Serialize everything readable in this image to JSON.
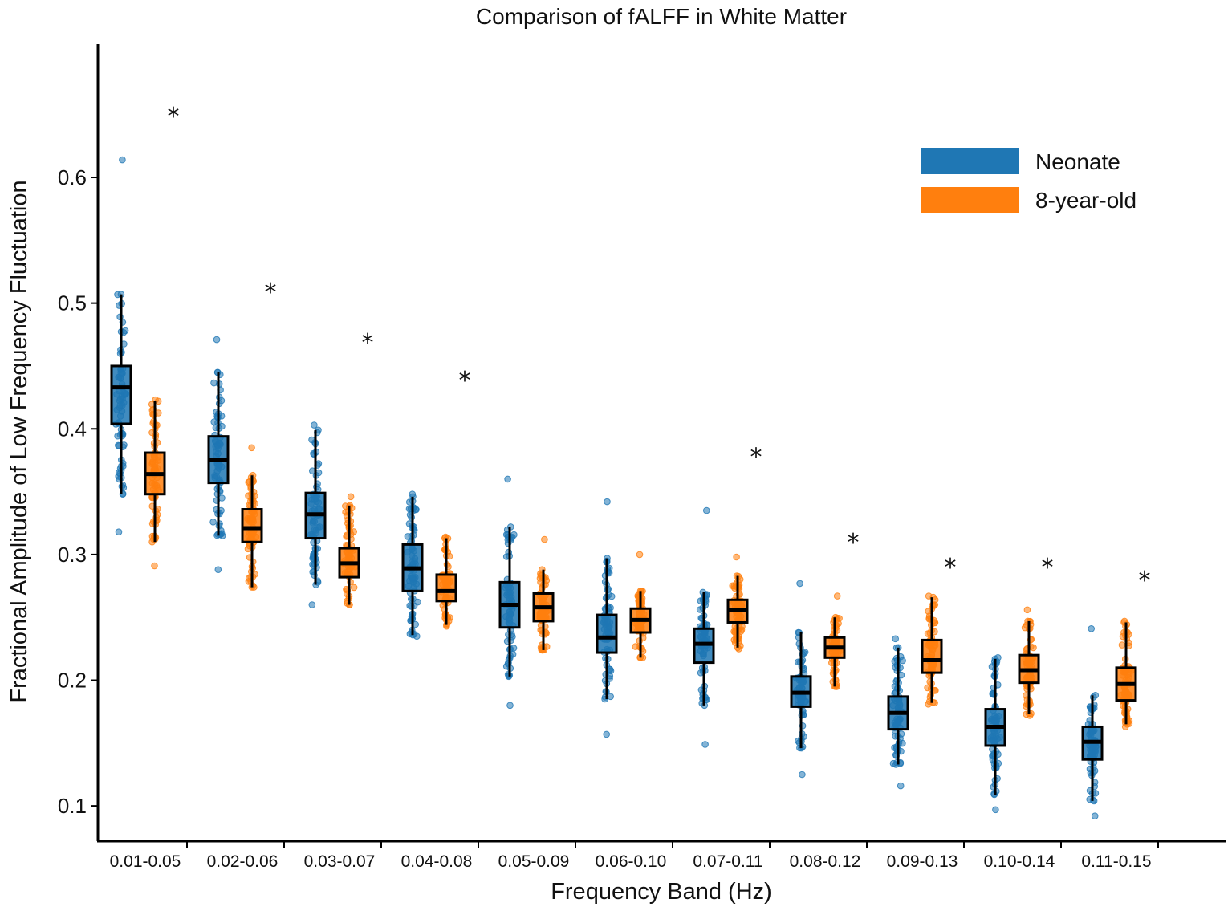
{
  "chart_data": {
    "type": "box",
    "title": "Comparison of fALFF in White Matter",
    "xlabel": "Frequency Band (Hz)",
    "ylabel": "Fractional Amplitude of Low Frequency Fluctuation",
    "ylim": [
      0.072,
      0.706
    ],
    "yticks": [
      0.1,
      0.2,
      0.3,
      0.4,
      0.5,
      0.6
    ],
    "ytick_labels": [
      "0.1",
      "0.2",
      "0.3",
      "0.4",
      "0.5",
      "0.6"
    ],
    "grid": false,
    "legend_position": "top-right",
    "categories": [
      "0.01-0.05",
      "0.02-0.06",
      "0.03-0.07",
      "0.04-0.08",
      "0.05-0.09",
      "0.06-0.10",
      "0.07-0.11",
      "0.08-0.12",
      "0.09-0.13",
      "0.10-0.14",
      "0.11-0.15"
    ],
    "series": [
      {
        "name": "Neonate",
        "color": "#1f77b4",
        "boxes": [
          {
            "q1": 0.404,
            "median": 0.433,
            "q3": 0.45,
            "lower_whisker": 0.348,
            "upper_whisker": 0.507,
            "min": 0.318,
            "max": 0.614
          },
          {
            "q1": 0.357,
            "median": 0.375,
            "q3": 0.394,
            "lower_whisker": 0.315,
            "upper_whisker": 0.445,
            "min": 0.288,
            "max": 0.471
          },
          {
            "q1": 0.313,
            "median": 0.332,
            "q3": 0.349,
            "lower_whisker": 0.276,
            "upper_whisker": 0.399,
            "min": 0.26,
            "max": 0.403
          },
          {
            "q1": 0.271,
            "median": 0.289,
            "q3": 0.308,
            "lower_whisker": 0.236,
            "upper_whisker": 0.346,
            "min": 0.235,
            "max": 0.348
          },
          {
            "q1": 0.242,
            "median": 0.26,
            "q3": 0.278,
            "lower_whisker": 0.203,
            "upper_whisker": 0.322,
            "min": 0.18,
            "max": 0.36
          },
          {
            "q1": 0.222,
            "median": 0.234,
            "q3": 0.252,
            "lower_whisker": 0.185,
            "upper_whisker": 0.297,
            "min": 0.157,
            "max": 0.342
          },
          {
            "q1": 0.214,
            "median": 0.229,
            "q3": 0.241,
            "lower_whisker": 0.18,
            "upper_whisker": 0.27,
            "min": 0.149,
            "max": 0.335
          },
          {
            "q1": 0.179,
            "median": 0.19,
            "q3": 0.203,
            "lower_whisker": 0.146,
            "upper_whisker": 0.238,
            "min": 0.125,
            "max": 0.277
          },
          {
            "q1": 0.161,
            "median": 0.174,
            "q3": 0.187,
            "lower_whisker": 0.133,
            "upper_whisker": 0.226,
            "min": 0.116,
            "max": 0.233
          },
          {
            "q1": 0.148,
            "median": 0.163,
            "q3": 0.177,
            "lower_whisker": 0.109,
            "upper_whisker": 0.217,
            "min": 0.097,
            "max": 0.218
          },
          {
            "q1": 0.137,
            "median": 0.151,
            "q3": 0.163,
            "lower_whisker": 0.104,
            "upper_whisker": 0.188,
            "min": 0.092,
            "max": 0.241
          }
        ]
      },
      {
        "name": "8-year-old",
        "color": "#ff7f0e",
        "boxes": [
          {
            "q1": 0.348,
            "median": 0.364,
            "q3": 0.381,
            "lower_whisker": 0.31,
            "upper_whisker": 0.422,
            "min": 0.291,
            "max": 0.423
          },
          {
            "q1": 0.31,
            "median": 0.321,
            "q3": 0.336,
            "lower_whisker": 0.274,
            "upper_whisker": 0.363,
            "min": 0.274,
            "max": 0.385
          },
          {
            "q1": 0.282,
            "median": 0.293,
            "q3": 0.305,
            "lower_whisker": 0.26,
            "upper_whisker": 0.339,
            "min": 0.26,
            "max": 0.346
          },
          {
            "q1": 0.263,
            "median": 0.271,
            "q3": 0.284,
            "lower_whisker": 0.244,
            "upper_whisker": 0.313,
            "min": 0.243,
            "max": 0.314
          },
          {
            "q1": 0.247,
            "median": 0.258,
            "q3": 0.269,
            "lower_whisker": 0.224,
            "upper_whisker": 0.288,
            "min": 0.224,
            "max": 0.312
          },
          {
            "q1": 0.238,
            "median": 0.248,
            "q3": 0.257,
            "lower_whisker": 0.218,
            "upper_whisker": 0.271,
            "min": 0.218,
            "max": 0.3
          },
          {
            "q1": 0.246,
            "median": 0.256,
            "q3": 0.264,
            "lower_whisker": 0.226,
            "upper_whisker": 0.283,
            "min": 0.225,
            "max": 0.298
          },
          {
            "q1": 0.218,
            "median": 0.226,
            "q3": 0.234,
            "lower_whisker": 0.195,
            "upper_whisker": 0.25,
            "min": 0.195,
            "max": 0.267
          },
          {
            "q1": 0.206,
            "median": 0.216,
            "q3": 0.232,
            "lower_whisker": 0.182,
            "upper_whisker": 0.266,
            "min": 0.181,
            "max": 0.267
          },
          {
            "q1": 0.198,
            "median": 0.208,
            "q3": 0.22,
            "lower_whisker": 0.173,
            "upper_whisker": 0.247,
            "min": 0.172,
            "max": 0.256
          },
          {
            "q1": 0.184,
            "median": 0.197,
            "q3": 0.21,
            "lower_whisker": 0.165,
            "upper_whisker": 0.246,
            "min": 0.163,
            "max": 0.247
          }
        ]
      }
    ],
    "significance": [
      {
        "category": "0.01-0.05",
        "label": "*",
        "y": 0.655
      },
      {
        "category": "0.02-0.06",
        "label": "*",
        "y": 0.515
      },
      {
        "category": "0.03-0.07",
        "label": "*",
        "y": 0.475
      },
      {
        "category": "0.04-0.08",
        "label": "*",
        "y": 0.445
      },
      {
        "category": "0.07-0.11",
        "label": "*",
        "y": 0.384
      },
      {
        "category": "0.08-0.12",
        "label": "*",
        "y": 0.316
      },
      {
        "category": "0.09-0.13",
        "label": "*",
        "y": 0.296
      },
      {
        "category": "0.10-0.14",
        "label": "*",
        "y": 0.296
      },
      {
        "category": "0.11-0.15",
        "label": "*",
        "y": 0.286
      }
    ]
  }
}
